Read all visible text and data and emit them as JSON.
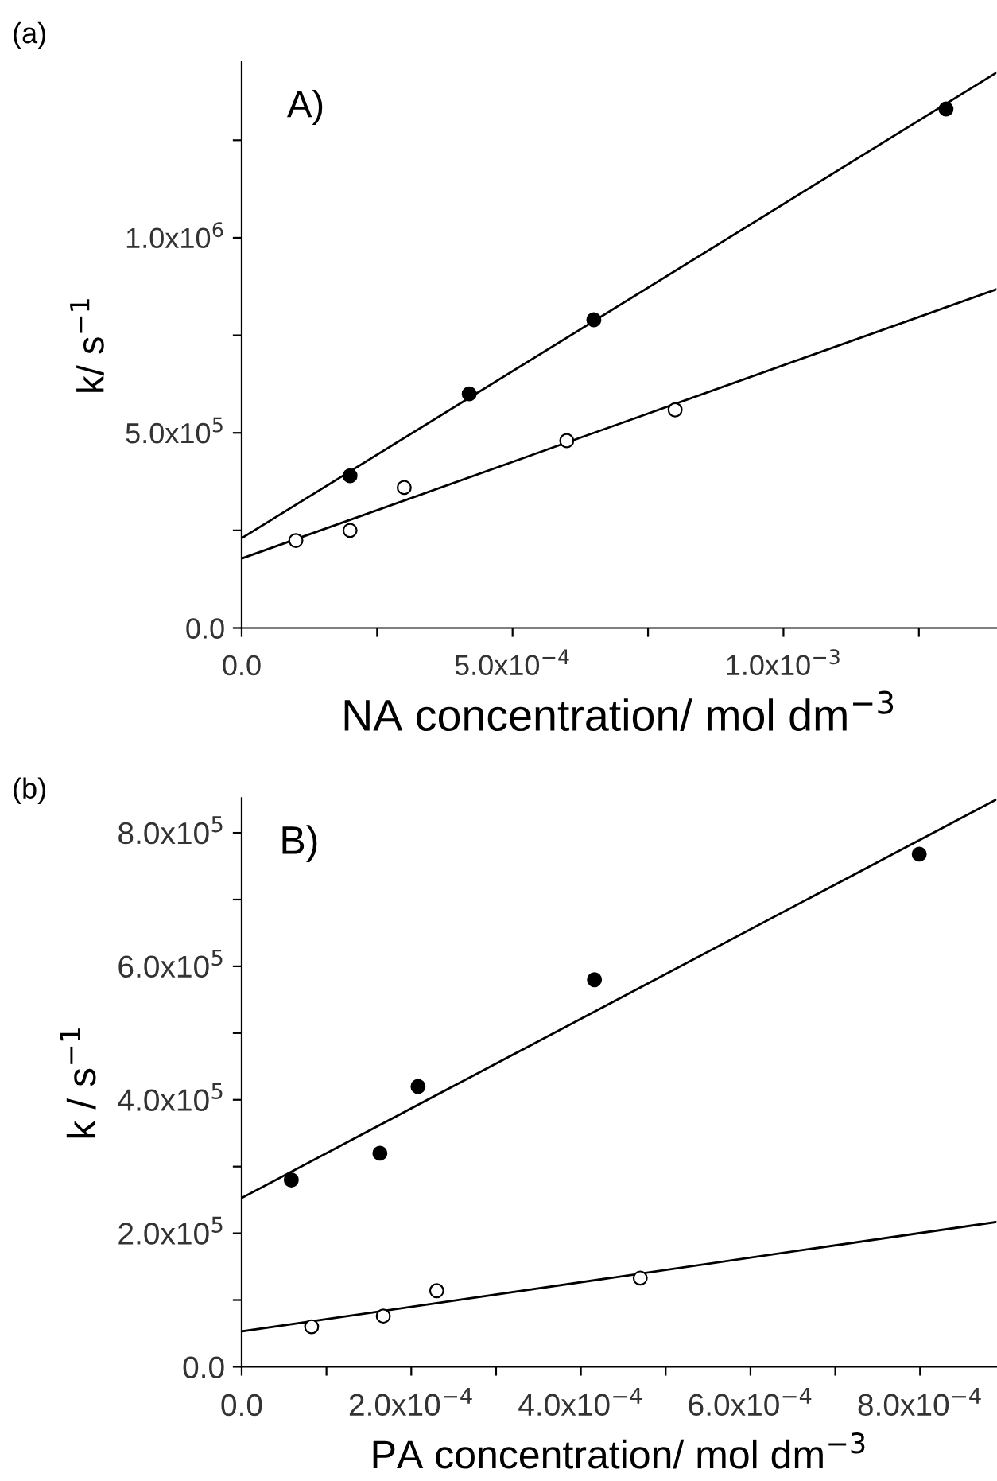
{
  "chart_data": [
    {
      "type": "scatter",
      "xlabel": "NA concentration/ mol dm$^{−3}$",
      "ylabel": "k/ s$^{−1}$",
      "annotations": [
        "(a)",
        "A)"
      ],
      "xlim": [
        0,
        0.001393
      ],
      "ylim": [
        0,
        1450000
      ],
      "xticks": [
        {
          "value": 0,
          "label": "0.0"
        },
        {
          "value": 0.00025,
          "label": null
        },
        {
          "value": 0.0005,
          "label": "5.0x10$^{−4}$"
        },
        {
          "value": 0.00075,
          "label": null
        },
        {
          "value": 0.001,
          "label": "1.0x10$^{−3}$"
        },
        {
          "value": 0.00125,
          "label": null
        }
      ],
      "yticks": [
        {
          "value": 0,
          "label": "0.0"
        },
        {
          "value": 250000,
          "label": null
        },
        {
          "value": 500000,
          "label": "5.0x10$^{5}$"
        },
        {
          "value": 750000,
          "label": null
        },
        {
          "value": 1000000,
          "label": "1.0x10$^{6}$"
        },
        {
          "value": 1250000,
          "label": null
        }
      ],
      "grid": false,
      "legend": false,
      "series": [
        {
          "marker": "circle",
          "color": "#000000",
          "x": [
            0.0002,
            0.00042,
            0.00065,
            0.0013
          ],
          "values": [
            390000,
            600000,
            790000,
            1330000
          ]
        },
        {
          "marker": "circle",
          "color": "#ffffff",
          "x": [
            0.0001,
            0.0002,
            0.0003,
            0.0006,
            0.0008
          ],
          "values": [
            224000,
            250000,
            360000,
            480000,
            559000
          ]
        },
        {
          "type": "line",
          "color": "#000000",
          "x": [
            0,
            0.001393
          ],
          "values": [
            230000,
            1423000
          ]
        },
        {
          "type": "line",
          "color": "#000000",
          "x": [
            0,
            0.001393
          ],
          "values": [
            178000,
            868000
          ]
        }
      ]
    },
    {
      "type": "scatter",
      "xlabel": "PA concentration/ mol dm$^{−3}$",
      "ylabel": "k / s$^{−1}$",
      "annotations": [
        "(b)",
        "B)"
      ],
      "xlim": [
        0,
        0.00089
      ],
      "ylim": [
        0,
        852000
      ],
      "xticks": [
        {
          "value": 0,
          "label": "0.0"
        },
        {
          "value": 0.0001,
          "label": null
        },
        {
          "value": 0.0002,
          "label": "2.0x10$^{−4}$"
        },
        {
          "value": 0.0003,
          "label": null
        },
        {
          "value": 0.0004,
          "label": "4.0x10$^{−4}$"
        },
        {
          "value": 0.0005,
          "label": null
        },
        {
          "value": 0.0006,
          "label": "6.0x10$^{−4}$"
        },
        {
          "value": 0.0007,
          "label": null
        },
        {
          "value": 0.0008,
          "label": "8.0x10$^{−4}$"
        }
      ],
      "yticks": [
        {
          "value": 0,
          "label": "0.0"
        },
        {
          "value": 100000,
          "label": null
        },
        {
          "value": 200000,
          "label": "2.0x10$^{5}$"
        },
        {
          "value": 300000,
          "label": null
        },
        {
          "value": 400000,
          "label": "4.0x10$^{5}$"
        },
        {
          "value": 500000,
          "label": null
        },
        {
          "value": 600000,
          "label": "6.0x10$^{5}$"
        },
        {
          "value": 700000,
          "label": null
        },
        {
          "value": 800000,
          "label": "8.0x10$^{5}$"
        }
      ],
      "grid": false,
      "legend": false,
      "series": [
        {
          "marker": "circle",
          "color": "#000000",
          "x": [
            5.85e-05,
            0.000163,
            0.000208,
            0.000416,
            0.000799
          ],
          "values": [
            280000,
            320000,
            420000,
            580000,
            768000
          ]
        },
        {
          "marker": "circle",
          "color": "#ffffff",
          "x": [
            8.25e-05,
            0.000167,
            0.00023,
            0.00047
          ],
          "values": [
            60000,
            76000,
            114000,
            133000
          ]
        },
        {
          "type": "line",
          "color": "#000000",
          "x": [
            0,
            0.00089
          ],
          "values": [
            253000,
            850000
          ]
        },
        {
          "type": "line",
          "color": "#000000",
          "x": [
            0,
            0.00089
          ],
          "values": [
            53000,
            217000
          ]
        }
      ]
    }
  ]
}
